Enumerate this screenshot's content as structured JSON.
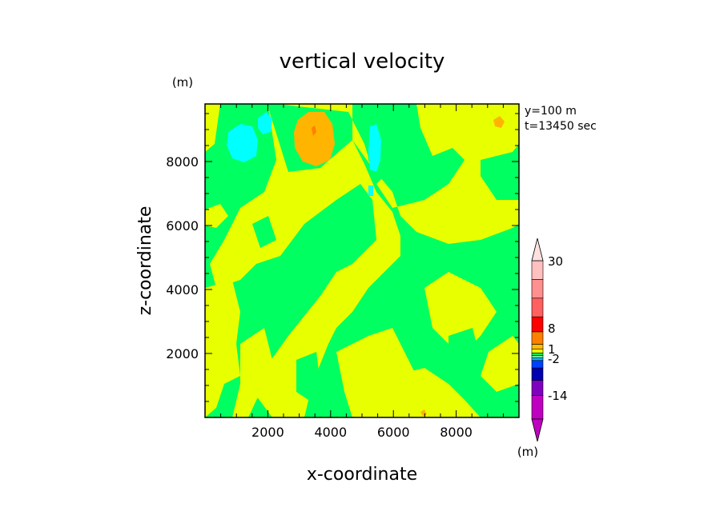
{
  "chart_data": {
    "type": "heatmap",
    "title": "vertical velocity",
    "xlabel": "x-coordinate",
    "ylabel": "z-coordinate",
    "x_unit": "(m)",
    "y_unit": "(m)",
    "colorbar_unit": "(m)",
    "annotations": [
      "y=100 m",
      "t=13450 sec"
    ],
    "xlim": [
      0,
      10000
    ],
    "ylim": [
      0,
      9800
    ],
    "xticks": [
      2000,
      4000,
      6000,
      8000
    ],
    "yticks": [
      2000,
      4000,
      6000,
      8000
    ],
    "xticklabels": [
      "2000",
      "4000",
      "6000",
      "8000"
    ],
    "yticklabels": [
      "2000",
      "4000",
      "6000",
      "8000"
    ],
    "colorbar": {
      "colors": [
        "#c000c0",
        "#8000c0",
        "#0000b0",
        "#0040ff",
        "#00c0ff",
        "#80e0a0",
        "#00ff60",
        "#e8ff00",
        "#ffc000",
        "#ff8000",
        "#ff0000",
        "#ff6060",
        "#ff9090",
        "#ffc0c0"
      ],
      "labels": [
        "30",
        "8",
        "1",
        "-2",
        "-14"
      ]
    },
    "field": {
      "cyan": "#00ffff",
      "green": "#00ff60",
      "yellow": "#e8ff00",
      "orange": "#ffb400"
    }
  }
}
